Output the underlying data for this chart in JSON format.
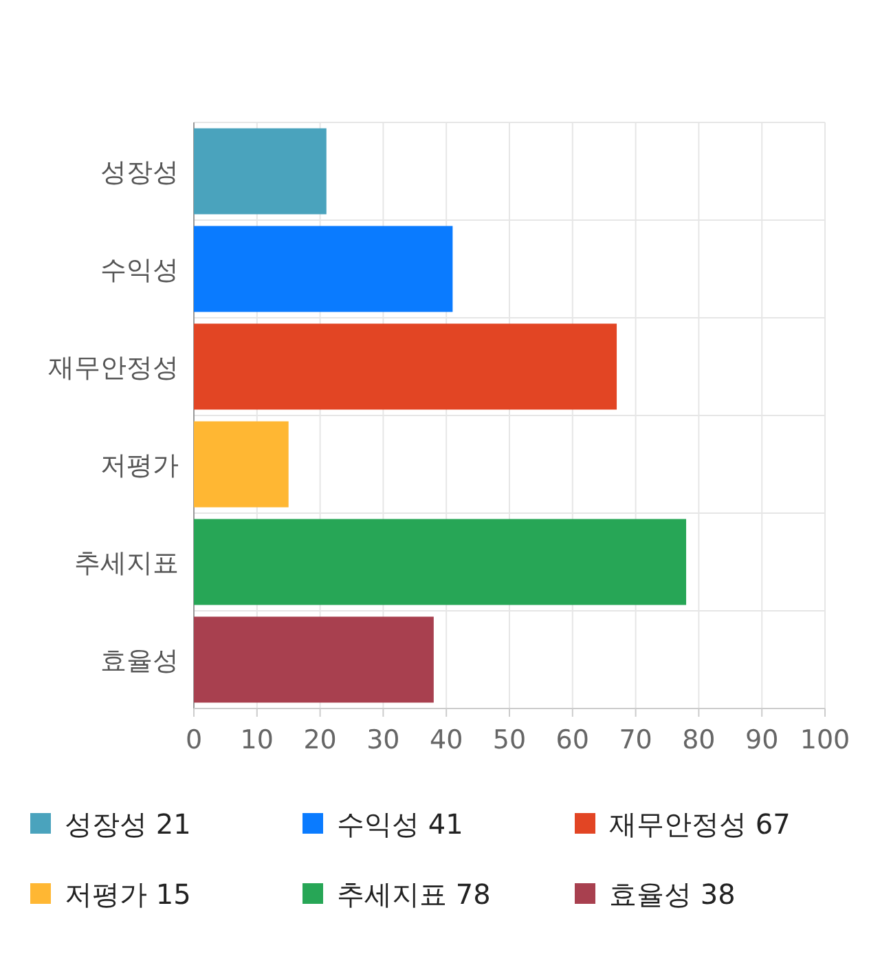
{
  "chart_data": {
    "type": "bar",
    "orientation": "horizontal",
    "categories": [
      "성장성",
      "수익성",
      "재무안정성",
      "저평가",
      "추세지표",
      "효율성"
    ],
    "series": [
      {
        "name": "성장성 21",
        "color": "#4aa3bd",
        "values": [
          21,
          null,
          null,
          null,
          null,
          null
        ]
      },
      {
        "name": "수익성 41",
        "color": "#0a7bff",
        "values": [
          null,
          41,
          null,
          null,
          null,
          null
        ]
      },
      {
        "name": "재무안정성 67",
        "color": "#e24524",
        "values": [
          null,
          null,
          67,
          null,
          null,
          null
        ]
      },
      {
        "name": "저평가 15",
        "color": "#ffb733",
        "values": [
          null,
          null,
          null,
          15,
          null,
          null
        ]
      },
      {
        "name": "추세지표 78",
        "color": "#27a656",
        "values": [
          null,
          null,
          null,
          null,
          78,
          null
        ]
      },
      {
        "name": "효율성 38",
        "color": "#a8404f",
        "values": [
          null,
          null,
          null,
          null,
          null,
          38
        ]
      }
    ],
    "xlim": [
      0,
      100
    ],
    "xticks": [
      0,
      10,
      20,
      30,
      40,
      50,
      60,
      70,
      80,
      90,
      100
    ],
    "grid": true,
    "legend": "bottom"
  }
}
